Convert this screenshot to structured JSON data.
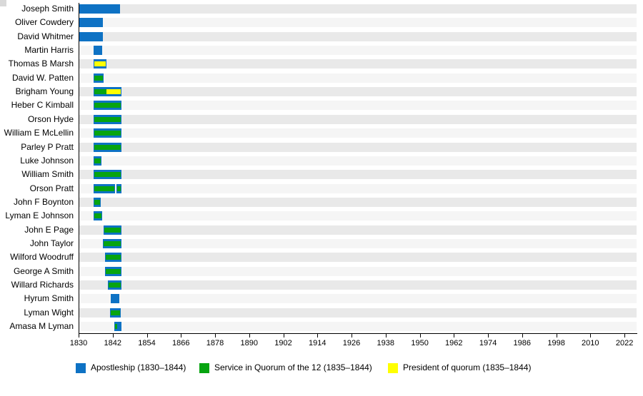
{
  "page": {
    "background": "#ffffff",
    "corner_artifact_color": "#d9d9d9"
  },
  "chart_data": {
    "type": "bar",
    "variant": "horizontal-gantt-timeline",
    "title": "",
    "xlabel": "",
    "ylabel": "",
    "grid": "row-bands",
    "legend_position": "bottom",
    "x_axis": {
      "min": 1830,
      "max": 2026,
      "tick_step": 12,
      "ticks": [
        1830,
        1842,
        1854,
        1866,
        1878,
        1890,
        1902,
        1914,
        1926,
        1938,
        1950,
        1962,
        1974,
        1986,
        1998,
        2010,
        2022
      ],
      "tick_labels": [
        "1830",
        "1842",
        "1854",
        "1866",
        "1878",
        "1890",
        "1902",
        "1914",
        "1926",
        "1938",
        "1950",
        "1962",
        "1974",
        "1986",
        "1998",
        "2010",
        "2022"
      ]
    },
    "colors": {
      "apostleship": "#0e72c4",
      "quorum": "#07a410",
      "president": "#ffff00",
      "track_odd": "#e9e9e9",
      "track_even": "#f5f5f5",
      "axis": "#000000"
    },
    "legend": [
      {
        "label": "Apostleship (1830–1844)",
        "color_key": "apostleship"
      },
      {
        "label": "Service in Quorum of the 12 (1835–1844)",
        "color_key": "quorum"
      },
      {
        "label": "President of quorum (1835–1844)",
        "color_key": "president"
      }
    ],
    "rows": [
      {
        "name": "Joseph Smith",
        "segments": [
          {
            "start": 1830.1,
            "end": 1844.4,
            "stripes": []
          }
        ]
      },
      {
        "name": "Oliver Cowdery",
        "segments": [
          {
            "start": 1830.1,
            "end": 1838.4,
            "stripes": []
          }
        ]
      },
      {
        "name": "David Whitmer",
        "segments": [
          {
            "start": 1830.1,
            "end": 1838.4,
            "stripes": []
          }
        ]
      },
      {
        "name": "Martin Harris",
        "segments": [
          {
            "start": 1834.9,
            "end": 1838.0,
            "stripes": []
          }
        ]
      },
      {
        "name": "Thomas B Marsh",
        "segments": [
          {
            "start": 1834.9,
            "end": 1839.6,
            "stripes": [
              {
                "start": 1834.9,
                "end": 1839.6,
                "color_key": "president"
              }
            ]
          }
        ]
      },
      {
        "name": "David W. Patten",
        "segments": [
          {
            "start": 1834.9,
            "end": 1838.6,
            "stripes": [
              {
                "start": 1834.9,
                "end": 1838.6,
                "color_key": "quorum"
              }
            ]
          }
        ]
      },
      {
        "name": "Brigham Young",
        "segments": [
          {
            "start": 1834.9,
            "end": 1844.8,
            "stripes": [
              {
                "start": 1834.9,
                "end": 1839.6,
                "color_key": "quorum"
              },
              {
                "start": 1839.6,
                "end": 1844.8,
                "color_key": "president"
              }
            ]
          }
        ]
      },
      {
        "name": "Heber C Kimball",
        "segments": [
          {
            "start": 1834.9,
            "end": 1844.8,
            "stripes": [
              {
                "start": 1834.9,
                "end": 1844.8,
                "color_key": "quorum"
              }
            ]
          }
        ]
      },
      {
        "name": "Orson Hyde",
        "segments": [
          {
            "start": 1834.9,
            "end": 1844.8,
            "stripes": [
              {
                "start": 1834.9,
                "end": 1844.8,
                "color_key": "quorum"
              }
            ]
          }
        ]
      },
      {
        "name": "William E McLellin",
        "segments": [
          {
            "start": 1834.9,
            "end": 1844.8,
            "stripes": [
              {
                "start": 1834.9,
                "end": 1844.8,
                "color_key": "quorum"
              }
            ]
          }
        ]
      },
      {
        "name": "Parley P Pratt",
        "segments": [
          {
            "start": 1834.9,
            "end": 1844.8,
            "stripes": [
              {
                "start": 1834.9,
                "end": 1844.8,
                "color_key": "quorum"
              }
            ]
          }
        ]
      },
      {
        "name": "Luke Johnson",
        "segments": [
          {
            "start": 1834.9,
            "end": 1837.9,
            "stripes": [
              {
                "start": 1834.9,
                "end": 1837.9,
                "color_key": "quorum"
              }
            ]
          }
        ]
      },
      {
        "name": "William Smith",
        "segments": [
          {
            "start": 1834.9,
            "end": 1844.8,
            "stripes": [
              {
                "start": 1834.9,
                "end": 1844.8,
                "color_key": "quorum"
              }
            ]
          }
        ]
      },
      {
        "name": "Orson Pratt",
        "segments": [
          {
            "start": 1834.9,
            "end": 1842.5,
            "stripes": [
              {
                "start": 1834.9,
                "end": 1842.5,
                "color_key": "quorum"
              }
            ]
          },
          {
            "start": 1843.1,
            "end": 1844.8,
            "stripes": [
              {
                "start": 1843.1,
                "end": 1844.8,
                "color_key": "quorum"
              }
            ]
          }
        ]
      },
      {
        "name": "John F Boynton",
        "segments": [
          {
            "start": 1834.9,
            "end": 1837.6,
            "stripes": [
              {
                "start": 1834.9,
                "end": 1837.6,
                "color_key": "quorum"
              }
            ]
          }
        ]
      },
      {
        "name": "Lyman E Johnson",
        "segments": [
          {
            "start": 1834.9,
            "end": 1838.1,
            "stripes": [
              {
                "start": 1834.9,
                "end": 1838.1,
                "color_key": "quorum"
              }
            ]
          }
        ]
      },
      {
        "name": "John E Page",
        "segments": [
          {
            "start": 1838.6,
            "end": 1844.8,
            "stripes": [
              {
                "start": 1838.6,
                "end": 1844.8,
                "color_key": "quorum"
              }
            ]
          }
        ]
      },
      {
        "name": "John Taylor",
        "segments": [
          {
            "start": 1838.2,
            "end": 1844.8,
            "stripes": [
              {
                "start": 1838.2,
                "end": 1844.8,
                "color_key": "quorum"
              }
            ]
          }
        ]
      },
      {
        "name": "Wilford Woodruff",
        "segments": [
          {
            "start": 1839.0,
            "end": 1844.8,
            "stripes": [
              {
                "start": 1839.0,
                "end": 1844.8,
                "color_key": "quorum"
              }
            ]
          }
        ]
      },
      {
        "name": "George A Smith",
        "segments": [
          {
            "start": 1839.0,
            "end": 1844.8,
            "stripes": [
              {
                "start": 1839.0,
                "end": 1844.8,
                "color_key": "quorum"
              }
            ]
          }
        ]
      },
      {
        "name": "Willard Richards",
        "segments": [
          {
            "start": 1840.0,
            "end": 1844.8,
            "stripes": [
              {
                "start": 1840.0,
                "end": 1844.8,
                "color_key": "quorum"
              }
            ]
          }
        ]
      },
      {
        "name": "Hyrum Smith",
        "segments": [
          {
            "start": 1841.1,
            "end": 1844.1,
            "stripes": []
          }
        ]
      },
      {
        "name": "Lyman Wight",
        "segments": [
          {
            "start": 1840.9,
            "end": 1844.6,
            "stripes": [
              {
                "start": 1840.9,
                "end": 1844.6,
                "color_key": "quorum"
              }
            ]
          }
        ]
      },
      {
        "name": "Amasa M Lyman",
        "segments": [
          {
            "start": 1842.2,
            "end": 1844.8,
            "stripes": [
              {
                "start": 1842.2,
                "end": 1843.2,
                "color_key": "quorum"
              }
            ]
          }
        ]
      }
    ]
  }
}
